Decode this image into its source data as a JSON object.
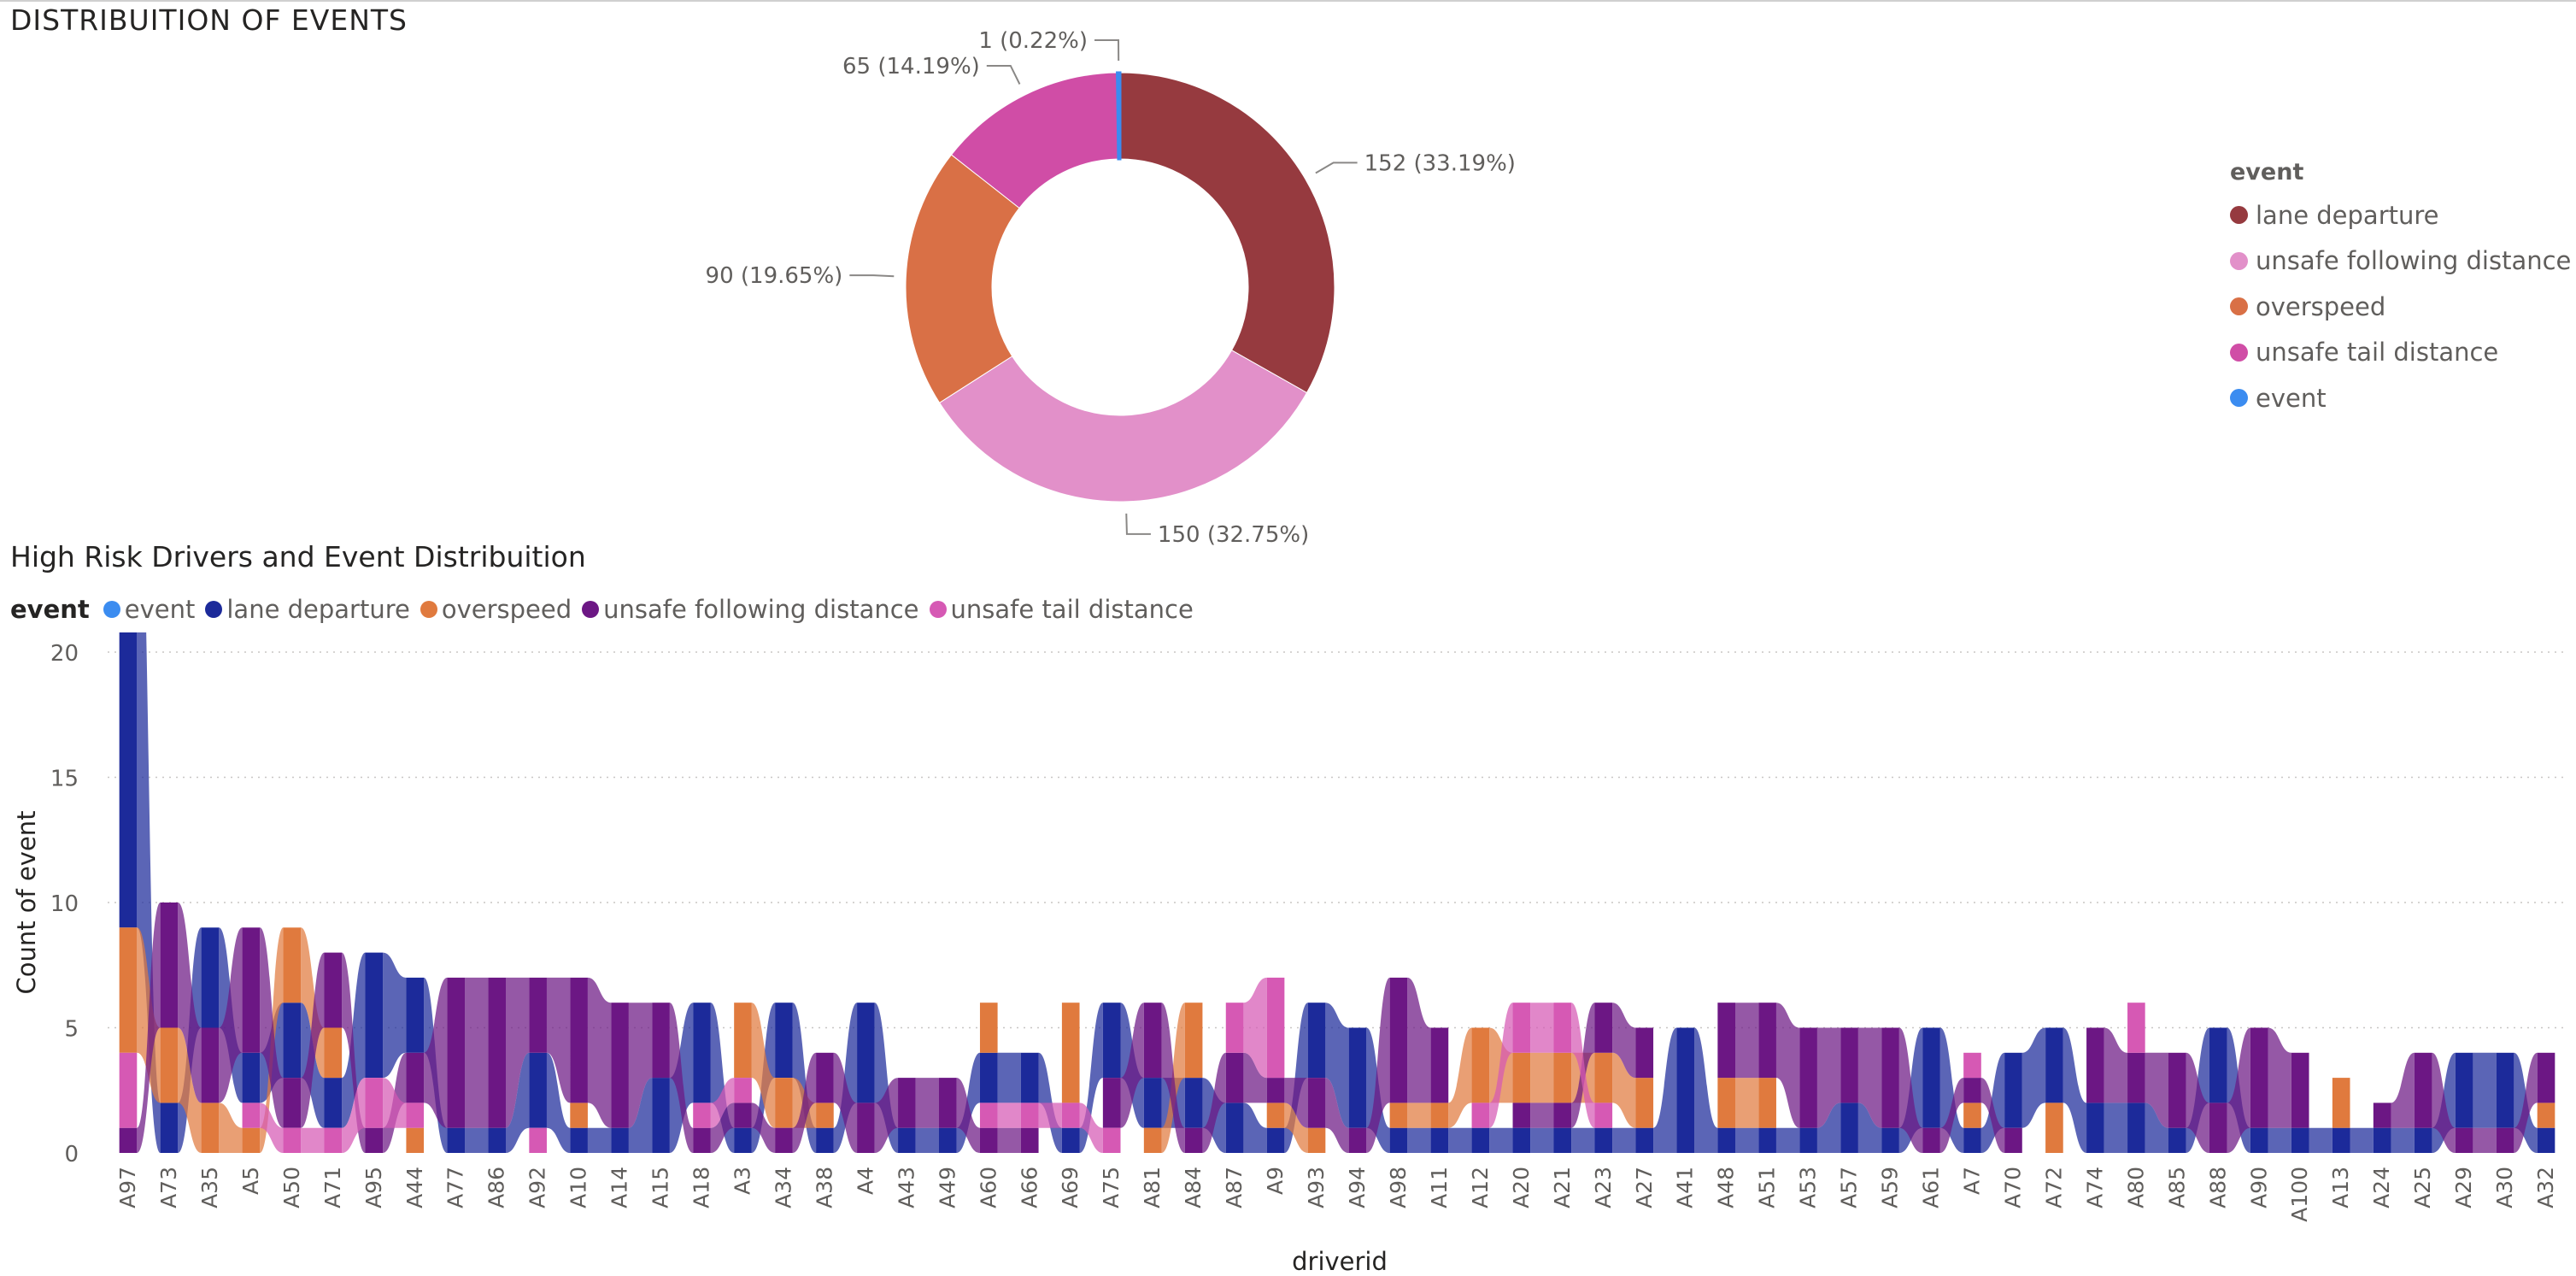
{
  "donut": {
    "title": "DISTRIBUITION OF EVENTS",
    "legend_title": "event",
    "legend": [
      {
        "label": "lane departure",
        "color": "#963A3F"
      },
      {
        "label": "unsafe following distance",
        "color": "#E290C9"
      },
      {
        "label": "overspeed",
        "color": "#D97046"
      },
      {
        "label": "unsafe tail distance",
        "color": "#D04DA6"
      },
      {
        "label": "event",
        "color": "#3B8CF0"
      }
    ]
  },
  "ribbon": {
    "title": "High Risk Drivers and Event Distribuition",
    "legend_title": "event",
    "legend": [
      {
        "label": "event",
        "color": "#3B8CF0"
      },
      {
        "label": "lane departure",
        "color": "#1C2A9A"
      },
      {
        "label": "overspeed",
        "color": "#E07A3E"
      },
      {
        "label": "unsafe following distance",
        "color": "#6C1784"
      },
      {
        "label": "unsafe tail distance",
        "color": "#D659B4"
      }
    ]
  },
  "chart_data": [
    {
      "type": "pie",
      "title": "DISTRIBUITION OF EVENTS",
      "legend_position": "right",
      "slices": [
        {
          "label": "lane departure",
          "value": 152,
          "data_label": "152 (33.19%)",
          "color": "#963A3F"
        },
        {
          "label": "unsafe following distance",
          "value": 150,
          "data_label": "150 (32.75%)",
          "color": "#E290C9"
        },
        {
          "label": "overspeed",
          "value": 90,
          "data_label": "90 (19.65%)",
          "color": "#D97046"
        },
        {
          "label": "unsafe tail distance",
          "value": 65,
          "data_label": "65 (14.19%)",
          "color": "#D04DA6"
        },
        {
          "label": "event",
          "value": 1,
          "data_label": "1 (0.22%)",
          "color": "#3B8CF0"
        }
      ]
    },
    {
      "type": "area",
      "title": "High Risk Drivers and Event Distribuition",
      "xlabel": "driverid",
      "ylabel": "Count of event",
      "ylim": [
        0,
        20
      ],
      "yticks": [
        0,
        5,
        10,
        15,
        20
      ],
      "grid": true,
      "legend_position": "top-left",
      "categories": [
        "A97",
        "A73",
        "A35",
        "A5",
        "A50",
        "A71",
        "A95",
        "A44",
        "A77",
        "A86",
        "A92",
        "A10",
        "A14",
        "A15",
        "A18",
        "A3",
        "A34",
        "A38",
        "A4",
        "A43",
        "A49",
        "A60",
        "A66",
        "A69",
        "A75",
        "A81",
        "A84",
        "A87",
        "A9",
        "A93",
        "A94",
        "A98",
        "A11",
        "A12",
        "A20",
        "A21",
        "A23",
        "A27",
        "A41",
        "A48",
        "A51",
        "A53",
        "A57",
        "A59",
        "A61",
        "A7",
        "A70",
        "A72",
        "A74",
        "A80",
        "A85",
        "A88",
        "A90",
        "A100",
        "A13",
        "A24",
        "A25",
        "A29",
        "A30",
        "A32"
      ],
      "series": [
        {
          "name": "lane departure",
          "color": "#1C2A9A",
          "values": [
            20,
            2,
            4,
            2,
            3,
            2,
            5,
            3,
            1,
            1,
            3,
            1,
            1,
            3,
            4,
            1,
            3,
            1,
            4,
            1,
            1,
            2,
            2,
            1,
            3,
            2,
            2,
            2,
            1,
            3,
            4,
            1,
            1,
            1,
            1,
            1,
            1,
            1,
            5,
            1,
            1,
            1,
            2,
            1,
            4,
            1,
            3,
            3,
            2,
            2,
            1,
            3,
            1,
            1,
            1,
            1,
            1,
            3,
            3,
            1
          ]
        },
        {
          "name": "overspeed",
          "color": "#E07A3E",
          "values": [
            5,
            3,
            2,
            1,
            3,
            2,
            0,
            1,
            0,
            0,
            0,
            1,
            0,
            0,
            0,
            3,
            2,
            1,
            0,
            0,
            0,
            2,
            0,
            4,
            0,
            1,
            3,
            0,
            1,
            1,
            0,
            1,
            1,
            3,
            2,
            2,
            2,
            2,
            0,
            2,
            2,
            0,
            0,
            0,
            0,
            1,
            0,
            2,
            0,
            0,
            0,
            0,
            0,
            0,
            2,
            0,
            0,
            0,
            0,
            1
          ]
        },
        {
          "name": "unsafe following distance",
          "color": "#6C1784",
          "values": [
            1,
            5,
            3,
            5,
            2,
            3,
            1,
            2,
            6,
            6,
            3,
            5,
            5,
            3,
            1,
            1,
            1,
            2,
            2,
            2,
            2,
            1,
            1,
            0,
            2,
            3,
            1,
            2,
            1,
            2,
            1,
            5,
            3,
            0,
            1,
            1,
            2,
            2,
            0,
            3,
            3,
            4,
            3,
            4,
            1,
            1,
            1,
            0,
            3,
            2,
            3,
            2,
            4,
            3,
            0,
            1,
            3,
            1,
            1,
            2
          ]
        },
        {
          "name": "unsafe tail distance",
          "color": "#D659B4",
          "values": [
            3,
            0,
            0,
            1,
            1,
            1,
            2,
            1,
            0,
            0,
            1,
            0,
            0,
            0,
            1,
            1,
            0,
            0,
            0,
            0,
            0,
            1,
            1,
            1,
            1,
            0,
            0,
            2,
            4,
            0,
            0,
            0,
            0,
            1,
            2,
            2,
            1,
            0,
            0,
            0,
            0,
            0,
            0,
            0,
            0,
            1,
            0,
            0,
            0,
            2,
            0,
            0,
            0,
            0,
            0,
            0,
            0,
            0,
            0,
            0
          ]
        }
      ]
    }
  ]
}
